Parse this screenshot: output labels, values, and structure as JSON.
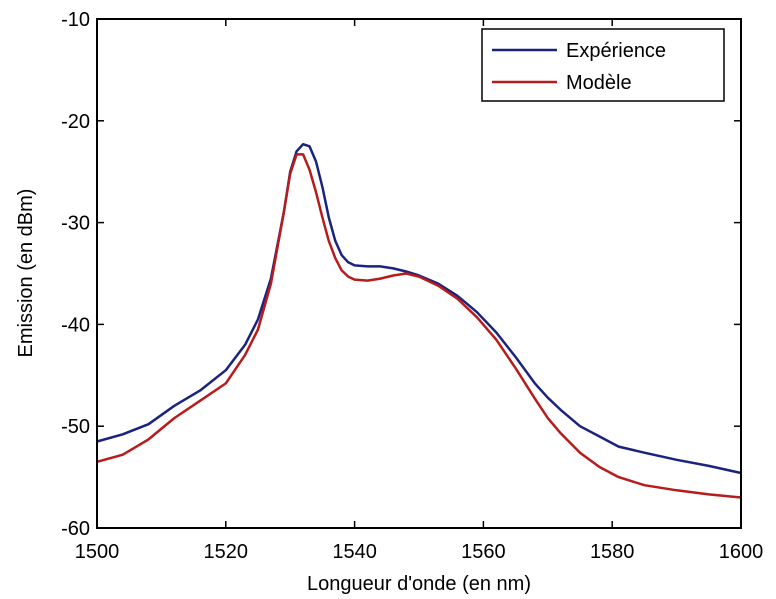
{
  "chart_data": {
    "type": "line",
    "title": "",
    "xlabel": "Longueur d'onde (en nm)",
    "ylabel": "Emission (en dBm)",
    "xlim": [
      1500,
      1600
    ],
    "ylim": [
      -60,
      -10
    ],
    "xticks": [
      1500,
      1520,
      1540,
      1560,
      1580,
      1600
    ],
    "yticks": [
      -10,
      -20,
      -30,
      -40,
      -50,
      -60
    ],
    "grid": false,
    "legend_position": "top-right",
    "series": [
      {
        "name": "Expérience",
        "color": "#1a237e",
        "x": [
          1500,
          1504,
          1508,
          1512,
          1516,
          1520,
          1523,
          1525,
          1527,
          1529,
          1530,
          1531,
          1532,
          1533,
          1534,
          1535,
          1536,
          1537,
          1538,
          1539,
          1540,
          1542,
          1544,
          1546,
          1548,
          1550,
          1553,
          1556,
          1559,
          1562,
          1565,
          1568,
          1570,
          1572,
          1575,
          1578,
          1581,
          1585,
          1590,
          1595,
          1600
        ],
        "y": [
          -51.5,
          -50.8,
          -49.8,
          -48.0,
          -46.5,
          -44.5,
          -42.0,
          -39.5,
          -35.5,
          -29.0,
          -25.0,
          -23.0,
          -22.3,
          -22.5,
          -24.0,
          -26.5,
          -29.5,
          -31.8,
          -33.2,
          -33.9,
          -34.2,
          -34.3,
          -34.3,
          -34.5,
          -34.8,
          -35.2,
          -36.0,
          -37.2,
          -38.8,
          -40.8,
          -43.2,
          -45.8,
          -47.2,
          -48.4,
          -50.0,
          -51.0,
          -52.0,
          -52.6,
          -53.3,
          -53.9,
          -54.6
        ]
      },
      {
        "name": "Modèle",
        "color": "#b71c1c",
        "x": [
          1500,
          1504,
          1508,
          1512,
          1516,
          1520,
          1523,
          1525,
          1527,
          1529,
          1530,
          1531,
          1532,
          1533,
          1534,
          1535,
          1536,
          1537,
          1538,
          1539,
          1540,
          1542,
          1544,
          1546,
          1548,
          1550,
          1553,
          1556,
          1559,
          1562,
          1565,
          1568,
          1570,
          1572,
          1575,
          1578,
          1581,
          1585,
          1590,
          1595,
          1600
        ],
        "y": [
          -53.5,
          -52.8,
          -51.3,
          -49.2,
          -47.5,
          -45.8,
          -43.0,
          -40.5,
          -36.0,
          -29.0,
          -25.2,
          -23.3,
          -23.3,
          -24.8,
          -27.0,
          -29.5,
          -31.8,
          -33.5,
          -34.7,
          -35.3,
          -35.6,
          -35.7,
          -35.5,
          -35.2,
          -35.0,
          -35.3,
          -36.2,
          -37.5,
          -39.3,
          -41.5,
          -44.3,
          -47.3,
          -49.2,
          -50.7,
          -52.6,
          -54.0,
          -55.0,
          -55.8,
          -56.3,
          -56.7,
          -57.0
        ]
      }
    ]
  }
}
